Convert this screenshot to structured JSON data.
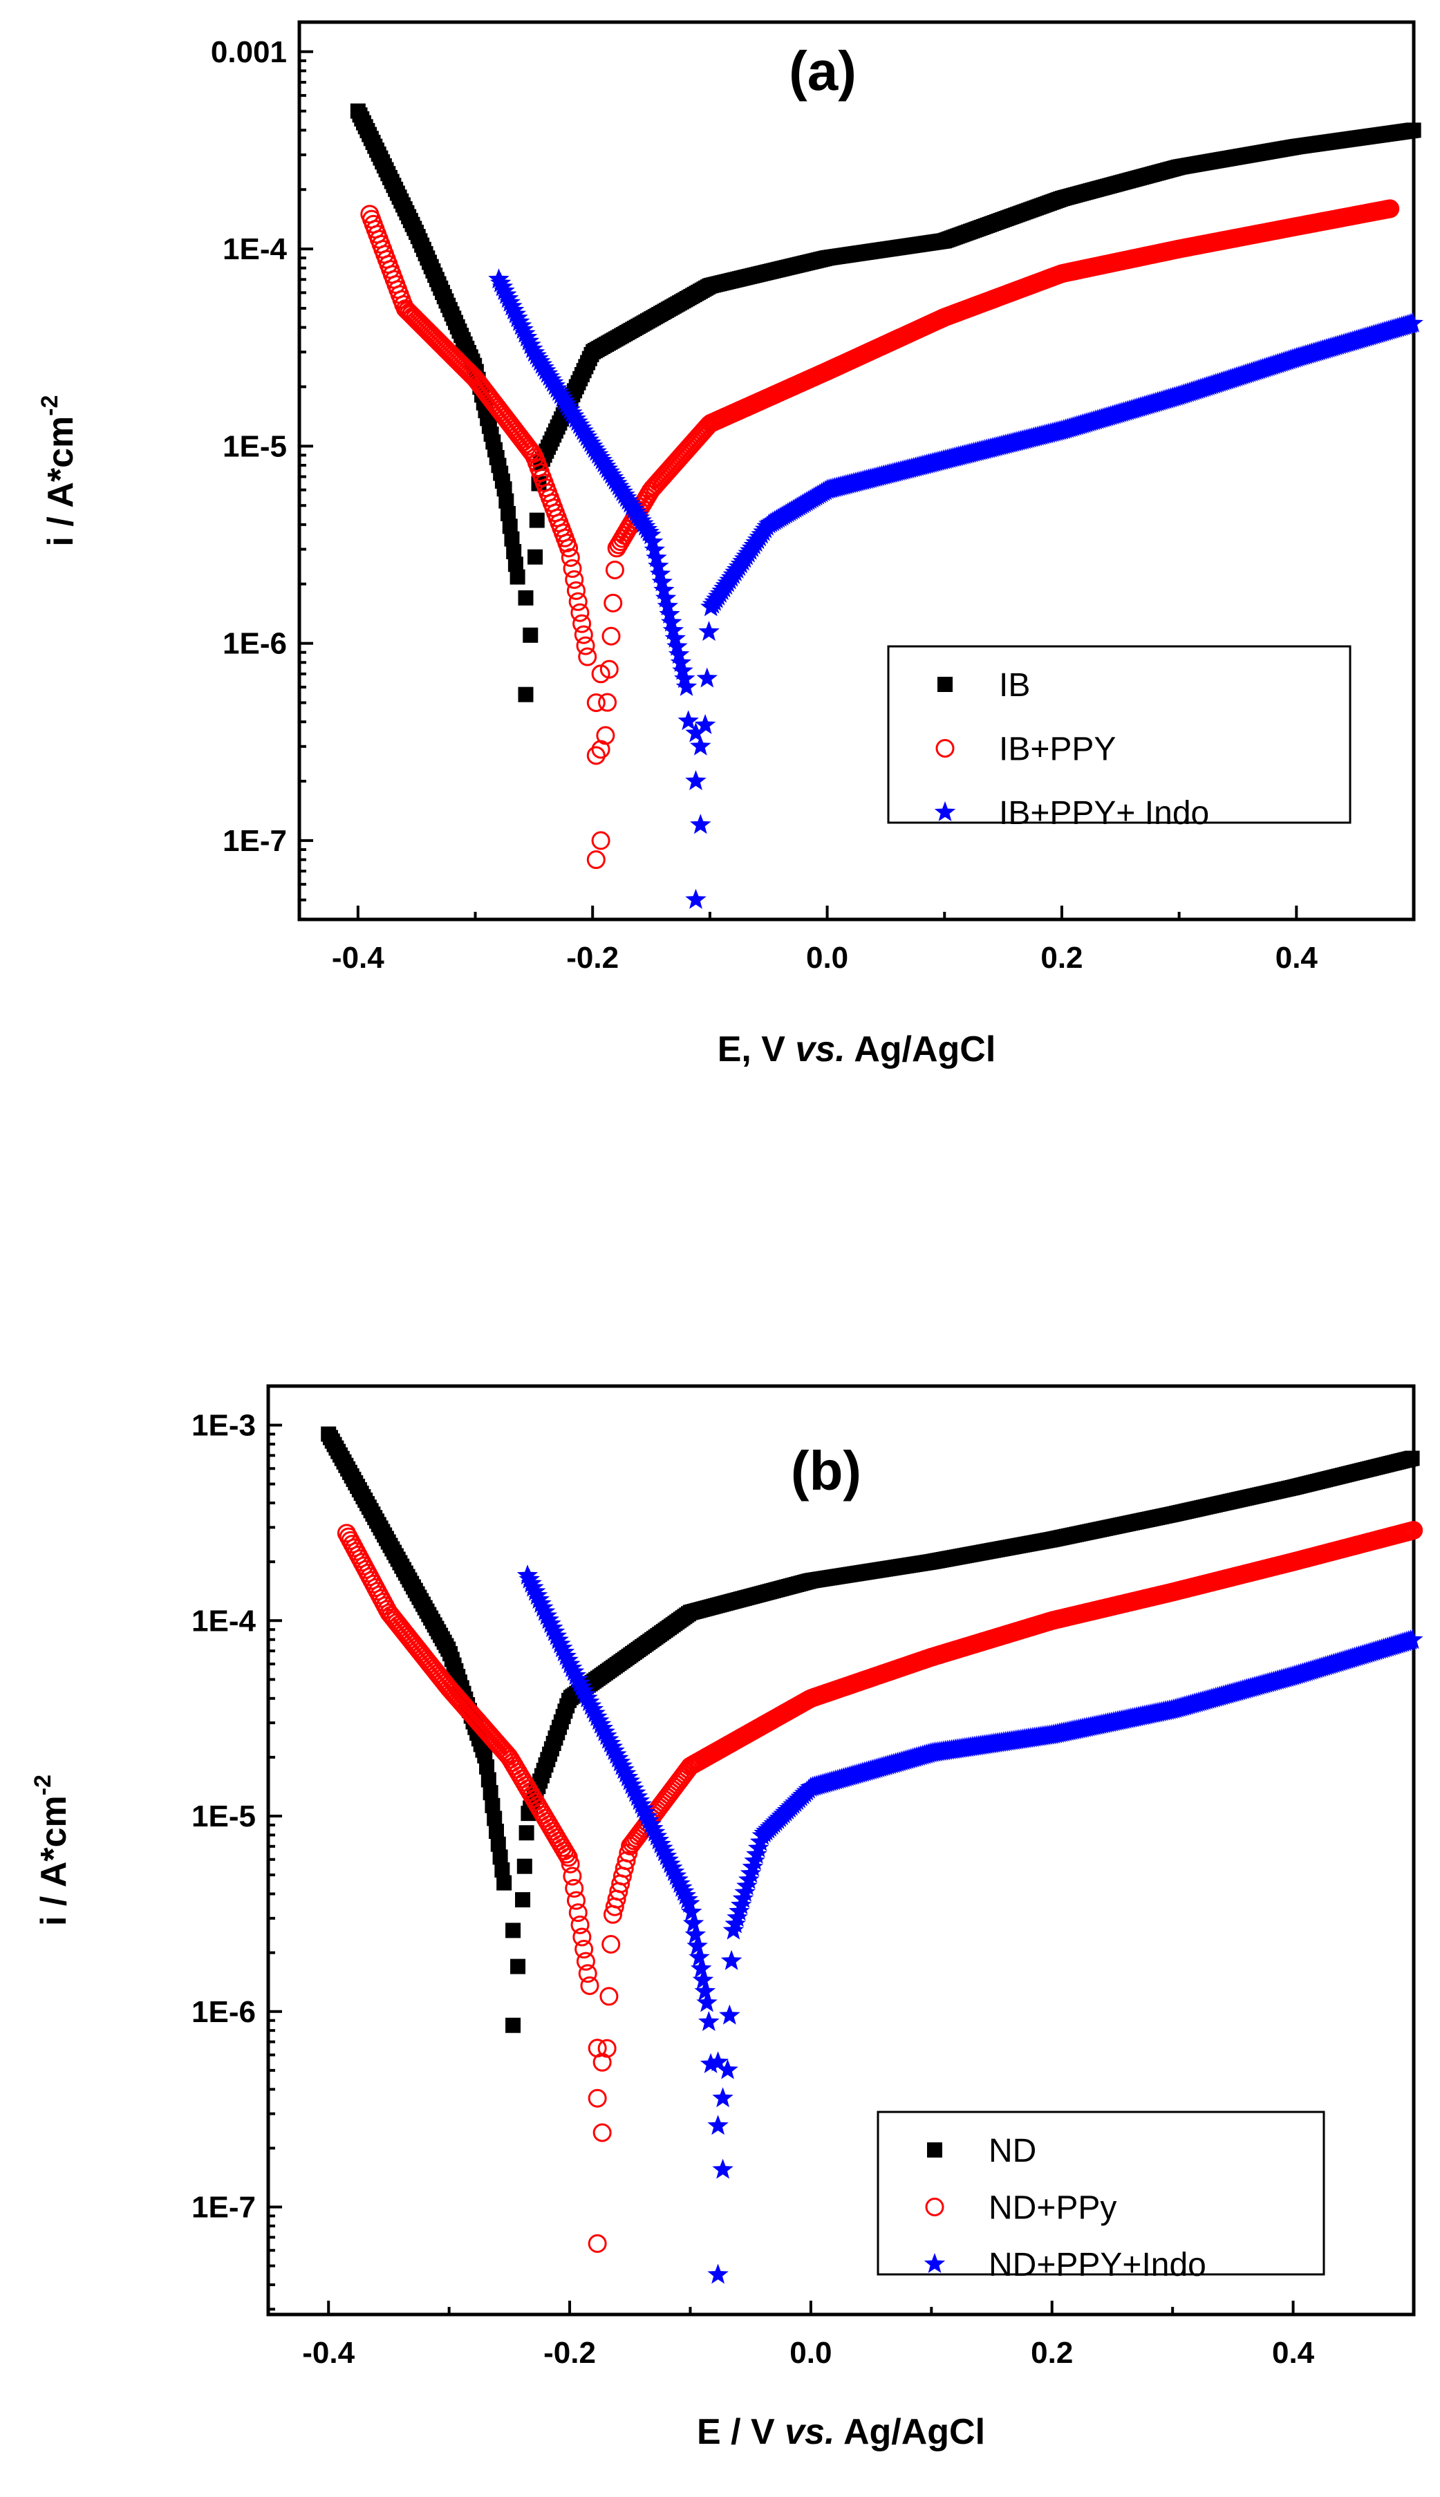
{
  "colors": {
    "black": "#000000",
    "red": "#ff0000",
    "blue": "#0000ff"
  },
  "chart_data": [
    {
      "type": "scatter",
      "panel_label": "(a)",
      "xlabel": {
        "pre": "E, V ",
        "italic": "vs.",
        "post": " Ag/AgCl"
      },
      "ylabel": {
        "main": "i / A*cm",
        "sup": "-2"
      },
      "xlim": [
        -0.45,
        0.5
      ],
      "ylim_log10": [
        -7.4,
        -2.85
      ],
      "x_ticks": [
        -0.4,
        -0.2,
        0.0,
        0.2,
        0.4
      ],
      "x_tick_labels": [
        "-0.4",
        "-0.2",
        "0.0",
        "0.2",
        "0.4"
      ],
      "y_ticks_log10": [
        -7,
        -6,
        -5,
        -4,
        -3
      ],
      "y_tick_labels": [
        "1E-7",
        "1E-6",
        "1E-5",
        "1E-4",
        "0.001"
      ],
      "legend_position": "center-right",
      "series": [
        {
          "name": "IB",
          "marker": "square",
          "color": "#000000",
          "start_x": -0.4,
          "start_i": 0.0005,
          "ecorr": -0.255,
          "min_i": 5.5e-07,
          "end_x": 0.5,
          "anodic": [
            [
              -0.255,
              5.5e-07
            ],
            [
              -0.245,
              8e-06
            ],
            [
              -0.2,
              3e-05
            ],
            [
              -0.1,
              6.5e-05
            ],
            [
              0.0,
              9e-05
            ],
            [
              0.1,
              0.00011
            ],
            [
              0.2,
              0.00018
            ],
            [
              0.3,
              0.00026
            ],
            [
              0.4,
              0.00033
            ],
            [
              0.5,
              0.0004
            ]
          ],
          "cathodic": [
            [
              -0.4,
              0.0005
            ],
            [
              -0.35,
              0.00012
            ],
            [
              -0.3,
              2.5e-05
            ],
            [
              -0.275,
              6e-06
            ],
            [
              -0.26,
              1.5e-06
            ],
            [
              -0.255,
              5.5e-07
            ]
          ],
          "tip_points": [
            5.5e-07,
            1.1e-06,
            1.7e-06
          ]
        },
        {
          "name": "IB+PPY",
          "marker": "circle",
          "color": "#ff0000",
          "start_x": -0.39,
          "start_i": 0.00015,
          "ecorr": -0.195,
          "min_i": 8e-08,
          "end_x": 0.48,
          "anodic": [
            [
              -0.195,
              8e-08
            ],
            [
              -0.18,
              3e-06
            ],
            [
              -0.15,
              6e-06
            ],
            [
              -0.1,
              1.3e-05
            ],
            [
              0.0,
              2.4e-05
            ],
            [
              0.1,
              4.5e-05
            ],
            [
              0.2,
              7.5e-05
            ],
            [
              0.3,
              0.0001
            ],
            [
              0.4,
              0.00013
            ],
            [
              0.48,
              0.00016
            ]
          ],
          "cathodic": [
            [
              -0.39,
              0.00015
            ],
            [
              -0.36,
              5e-05
            ],
            [
              -0.3,
              2.2e-05
            ],
            [
              -0.25,
              9e-06
            ],
            [
              -0.22,
              3e-06
            ],
            [
              -0.2,
              6e-07
            ],
            [
              -0.195,
              8e-08
            ]
          ],
          "tip_points": [
            8e-08,
            1e-07,
            2.7e-07,
            2.9e-07,
            5e-07,
            7e-07
          ]
        },
        {
          "name": "IB+PPY+ Indo",
          "marker": "star",
          "color": "#0000ff",
          "start_x": -0.28,
          "start_i": 7e-05,
          "ecorr": -0.11,
          "min_i": 5e-08,
          "end_x": 0.5,
          "anodic": [
            [
              -0.11,
              5e-08
            ],
            [
              -0.1,
              1.5e-06
            ],
            [
              -0.05,
              4e-06
            ],
            [
              0.0,
              6e-06
            ],
            [
              0.1,
              8.5e-06
            ],
            [
              0.2,
              1.2e-05
            ],
            [
              0.3,
              1.8e-05
            ],
            [
              0.4,
              2.8e-05
            ],
            [
              0.5,
              4.2e-05
            ]
          ],
          "cathodic": [
            [
              -0.28,
              7e-05
            ],
            [
              -0.25,
              3e-05
            ],
            [
              -0.2,
              1e-05
            ],
            [
              -0.15,
              3.5e-06
            ],
            [
              -0.12,
              6e-07
            ],
            [
              -0.11,
              5e-08
            ]
          ],
          "tip_points": [
            5e-08,
            1.2e-07,
            2e-07,
            3e-07,
            3.5e-07
          ]
        }
      ]
    },
    {
      "type": "scatter",
      "panel_label": "(b)",
      "xlabel": {
        "pre": "E / V ",
        "italic": "vs.",
        "post": " Ag/AgCl"
      },
      "ylabel": {
        "main": "i / A*cm",
        "sup": "-2"
      },
      "xlim": [
        -0.45,
        0.5
      ],
      "ylim_log10": [
        -7.55,
        -2.8
      ],
      "x_ticks": [
        -0.4,
        -0.2,
        0.0,
        0.2,
        0.4
      ],
      "x_tick_labels": [
        "-0.4",
        "-0.2",
        "0.0",
        "0.2",
        "0.4"
      ],
      "y_ticks_log10": [
        -7,
        -6,
        -5,
        -4,
        -3
      ],
      "y_tick_labels": [
        "1E-7",
        "1E-6",
        "1E-5",
        "1E-4",
        "1E-3"
      ],
      "legend_position": "bottom-right",
      "series": [
        {
          "name": "ND",
          "marker": "square",
          "color": "#000000",
          "start_x": -0.4,
          "start_i": 0.0009,
          "ecorr": -0.245,
          "min_i": 8.5e-07,
          "end_x": 0.5,
          "anodic": [
            [
              -0.245,
              8.5e-07
            ],
            [
              -0.235,
              1e-05
            ],
            [
              -0.2,
              4e-05
            ],
            [
              -0.1,
              0.00011
            ],
            [
              0.0,
              0.00016
            ],
            [
              0.1,
              0.0002
            ],
            [
              0.2,
              0.00026
            ],
            [
              0.3,
              0.00035
            ],
            [
              0.4,
              0.00048
            ],
            [
              0.5,
              0.00068
            ]
          ],
          "cathodic": [
            [
              -0.4,
              0.0009
            ],
            [
              -0.35,
              0.00025
            ],
            [
              -0.3,
              7e-05
            ],
            [
              -0.27,
              2e-05
            ],
            [
              -0.25,
              3e-06
            ],
            [
              -0.245,
              8.5e-07
            ]
          ],
          "tip_points": [
            8.5e-07,
            1.7e-06,
            2.6e-06
          ]
        },
        {
          "name": "ND+PPy",
          "marker": "circle",
          "color": "#ff0000",
          "start_x": -0.385,
          "start_i": 0.00028,
          "ecorr": -0.175,
          "min_i": 6.5e-08,
          "end_x": 0.5,
          "anodic": [
            [
              -0.175,
              6.5e-08
            ],
            [
              -0.165,
              3e-06
            ],
            [
              -0.15,
              7e-06
            ],
            [
              -0.1,
              1.8e-05
            ],
            [
              0.0,
              4e-05
            ],
            [
              0.1,
              6.5e-05
            ],
            [
              0.2,
              0.0001
            ],
            [
              0.3,
              0.00014
            ],
            [
              0.4,
              0.0002
            ],
            [
              0.5,
              0.00029
            ]
          ],
          "cathodic": [
            [
              -0.385,
              0.00028
            ],
            [
              -0.35,
              0.00011
            ],
            [
              -0.3,
              4.5e-05
            ],
            [
              -0.25,
              2e-05
            ],
            [
              -0.2,
              6e-06
            ],
            [
              -0.18,
              1e-06
            ],
            [
              -0.175,
              6.5e-08
            ]
          ],
          "tip_points": [
            6.5e-08,
            2.4e-07,
            3.6e-07,
            5.5e-07,
            6.5e-07
          ]
        },
        {
          "name": "ND+PPY+Indo",
          "marker": "star",
          "color": "#0000ff",
          "start_x": -0.235,
          "start_i": 0.00017,
          "ecorr": -0.075,
          "min_i": 4.5e-08,
          "end_x": 0.5,
          "anodic": [
            [
              -0.075,
              4.5e-08
            ],
            [
              -0.065,
              2.5e-06
            ],
            [
              -0.04,
              8e-06
            ],
            [
              0.0,
              1.4e-05
            ],
            [
              0.1,
              2.1e-05
            ],
            [
              0.2,
              2.6e-05
            ],
            [
              0.3,
              3.5e-05
            ],
            [
              0.4,
              5.2e-05
            ],
            [
              0.5,
              8e-05
            ]
          ],
          "cathodic": [
            [
              -0.235,
              0.00017
            ],
            [
              -0.2,
              6e-05
            ],
            [
              -0.15,
              1.5e-05
            ],
            [
              -0.1,
              3.5e-06
            ],
            [
              -0.085,
              1e-06
            ],
            [
              -0.075,
              4.5e-08
            ]
          ],
          "tip_points": [
            4.5e-08,
            1.55e-07,
            2.6e-07,
            3.6e-07,
            5.5e-07
          ]
        }
      ]
    }
  ]
}
